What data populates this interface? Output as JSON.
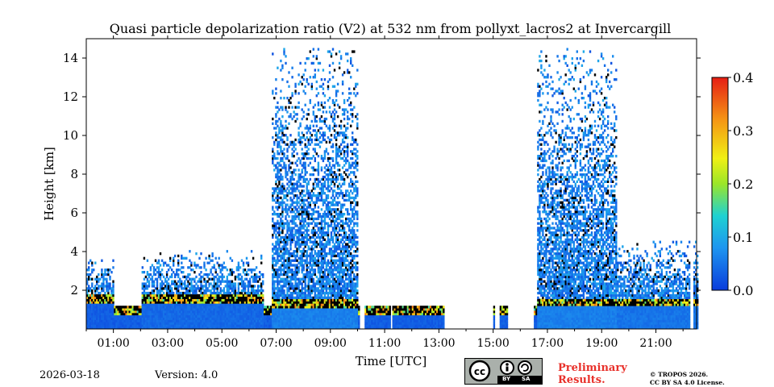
{
  "chart_data": {
    "type": "heatmap",
    "title": "Quasi particle depolarization ratio (V2) at 532 nm from pollyxt_lacros2 at Invercargill",
    "xlabel": "Time [UTC]",
    "ylabel": "Height [km]",
    "x_range_hours": [
      0,
      22.5
    ],
    "y_range_km": [
      0,
      15
    ],
    "x_ticks": [
      {
        "value": 1,
        "label": "01:00"
      },
      {
        "value": 3,
        "label": "03:00"
      },
      {
        "value": 5,
        "label": "05:00"
      },
      {
        "value": 7,
        "label": "07:00"
      },
      {
        "value": 9,
        "label": "09:00"
      },
      {
        "value": 11,
        "label": "11:00"
      },
      {
        "value": 13,
        "label": "13:00"
      },
      {
        "value": 15,
        "label": "15:00"
      },
      {
        "value": 17,
        "label": "17:00"
      },
      {
        "value": 19,
        "label": "19:00"
      },
      {
        "value": 21,
        "label": "21:00"
      }
    ],
    "y_ticks": [
      {
        "value": 2,
        "label": "2"
      },
      {
        "value": 4,
        "label": "4"
      },
      {
        "value": 6,
        "label": "6"
      },
      {
        "value": 8,
        "label": "8"
      },
      {
        "value": 10,
        "label": "10"
      },
      {
        "value": 12,
        "label": "12"
      },
      {
        "value": 14,
        "label": "14"
      }
    ],
    "colorbar": {
      "range": [
        0,
        0.4
      ],
      "ticks": [
        {
          "value": 0.0,
          "label": "0.0"
        },
        {
          "value": 0.1,
          "label": "0.1"
        },
        {
          "value": 0.2,
          "label": "0.2"
        },
        {
          "value": 0.3,
          "label": "0.3"
        },
        {
          "value": 0.4,
          "label": "0.4"
        }
      ]
    },
    "data_gaps_hours": [
      [
        10.05,
        10.2
      ],
      [
        11.2,
        11.25
      ],
      [
        13.2,
        15.0
      ],
      [
        15.05,
        15.2
      ],
      [
        15.5,
        16.5
      ],
      [
        22.2,
        22.35
      ]
    ],
    "regions": [
      {
        "t0": 0.0,
        "t1": 1.0,
        "top_km": 3.5,
        "boundary_km": 1.6,
        "near_surface_value": 0.02
      },
      {
        "t0": 2.0,
        "t1": 6.5,
        "top_km": 4.0,
        "boundary_km": 1.6,
        "near_surface_value": 0.03
      },
      {
        "t0": 6.8,
        "t1": 10.0,
        "top_km": 14.5,
        "boundary_km": 1.3,
        "near_surface_value": 0.05
      },
      {
        "t0": 16.6,
        "t1": 19.5,
        "top_km": 14.5,
        "boundary_km": 1.4,
        "near_surface_value": 0.05
      },
      {
        "t0": 19.5,
        "t1": 22.5,
        "top_km": 4.5,
        "boundary_km": 1.4,
        "near_surface_value": 0.04
      }
    ]
  },
  "footer": {
    "date": "2026-03-18",
    "version": "Version: 4.0",
    "preliminary_line1": "Preliminary",
    "preliminary_line2": "Results.",
    "copyright_line1": "© TROPOS 2026.",
    "copyright_line2": "CC BY SA 4.0 License.",
    "license_badge": {
      "by": "BY",
      "sa": "SA"
    }
  }
}
